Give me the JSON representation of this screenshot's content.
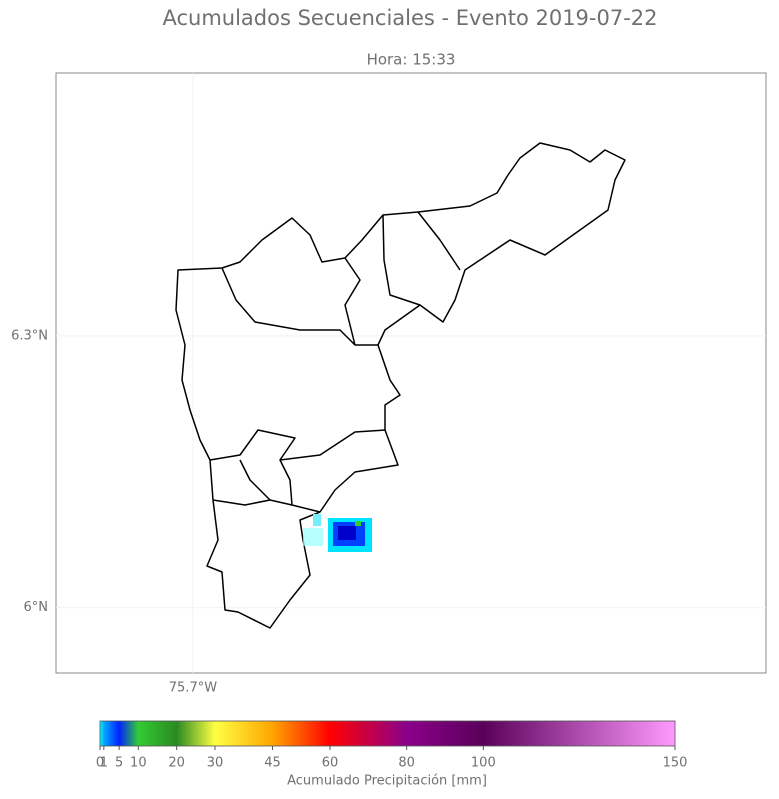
{
  "chart_data": {
    "type": "map",
    "title": "Acumulados Secuenciales - Evento 2019-07-22",
    "subtitle": "Hora: 15:33",
    "xlim": [
      -75.851,
      -75.068
    ],
    "ylim": [
      5.928,
      6.59
    ],
    "xticks": [
      {
        "value": -75.7,
        "label": "75.7°W"
      }
    ],
    "yticks": [
      {
        "value": 6.3,
        "label": "6.3°N"
      },
      {
        "value": 6.0,
        "label": "6°N"
      }
    ],
    "grid": true,
    "colorbar": {
      "label": "Acumulado Precipitación [mm]",
      "lim": [
        0,
        150
      ],
      "ticks": [
        0,
        1,
        5,
        10,
        20,
        30,
        45,
        60,
        80,
        100,
        150
      ],
      "colors": [
        "#00ffff",
        "#00aaff",
        "#0022ff",
        "#33cc33",
        "#2a8a22",
        "#ffff44",
        "#ffa500",
        "#ff0000",
        "#8b008b",
        "#5a005a",
        "#ff99ff"
      ]
    }
  }
}
